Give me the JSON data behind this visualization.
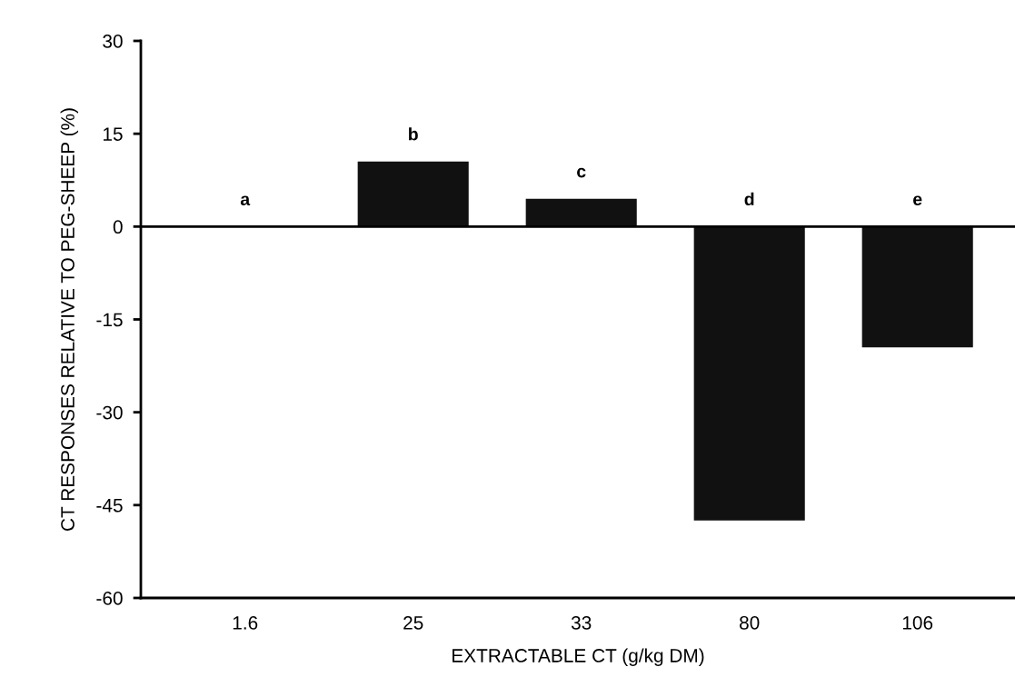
{
  "chart_data": {
    "type": "bar",
    "xlabel": "EXTRACTABLE CT (g/kg DM)",
    "ylabel": "CT RESPONSES RELATIVE TO PEG-SHEEP (%)",
    "categories": [
      "1.6",
      "25",
      "33",
      "80",
      "106"
    ],
    "values": [
      0,
      10.5,
      4.5,
      -47.5,
      -19.5
    ],
    "color": "#111111",
    "ylim": [
      -60,
      30
    ],
    "yticks": [
      -60,
      -45,
      -30,
      -15,
      0,
      15,
      30
    ],
    "ref_lines": [
      {
        "axis": "y",
        "value": 0,
        "color": "#000000"
      }
    ],
    "annotations": [
      "a",
      "b",
      "c",
      "d",
      "e"
    ],
    "grid": false,
    "legend": false
  }
}
